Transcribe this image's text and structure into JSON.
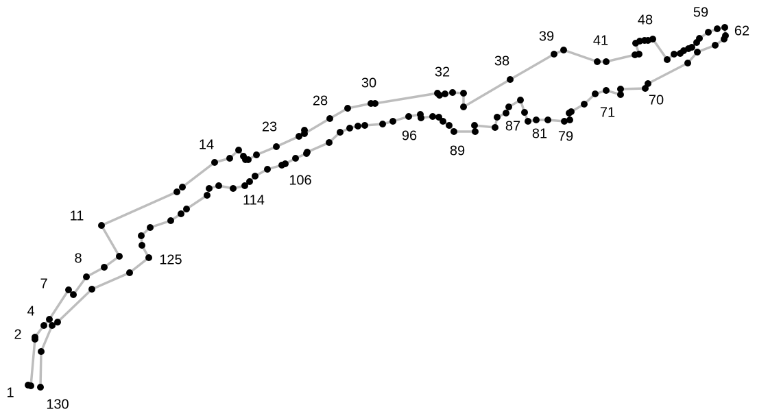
{
  "diagram": {
    "type": "numbered point path",
    "line_color": "#bdbdbd",
    "dot_color": "#000000",
    "labels": [
      "1",
      "2",
      "4",
      "7",
      "8",
      "11",
      "14",
      "23",
      "28",
      "30",
      "32",
      "38",
      "39",
      "41",
      "48",
      "59",
      "62",
      "70",
      "71",
      "79",
      "81",
      "87",
      "89",
      "96",
      "106",
      "114",
      "125",
      "130"
    ]
  }
}
